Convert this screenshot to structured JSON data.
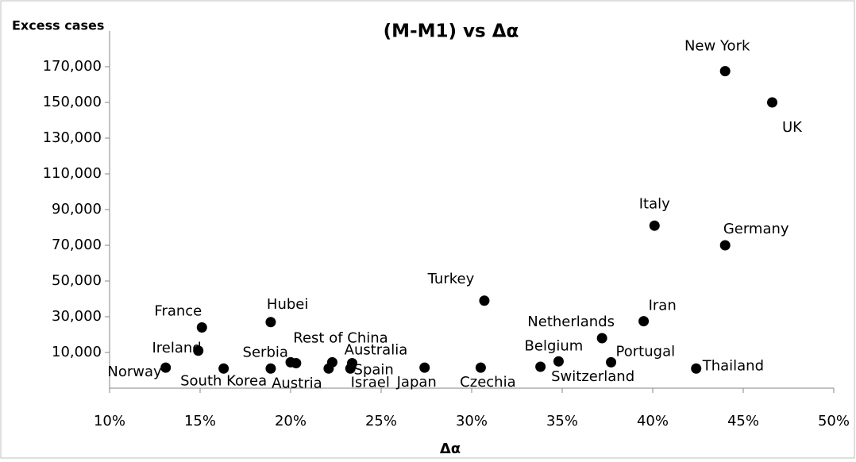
{
  "chart_data": {
    "type": "scatter",
    "title": "(M-M1) vs Δα",
    "y_label": "Excess cases",
    "x_label": "Δα",
    "color": "#000000",
    "xlim": [
      10,
      50
    ],
    "xticks": [
      {
        "value": 10,
        "label": "10%"
      },
      {
        "value": 15,
        "label": "15%"
      },
      {
        "value": 20,
        "label": "20%"
      },
      {
        "value": 25,
        "label": "25%"
      },
      {
        "value": 30,
        "label": "30%"
      },
      {
        "value": 35,
        "label": "35%"
      },
      {
        "value": 40,
        "label": "40%"
      },
      {
        "value": 45,
        "label": "45%"
      },
      {
        "value": 50,
        "label": "50%"
      }
    ],
    "ylim": [
      -10000,
      190000
    ],
    "yticks": [
      {
        "value": 10000,
        "label": "10,000"
      },
      {
        "value": 30000,
        "label": "30,000"
      },
      {
        "value": 50000,
        "label": "50,000"
      },
      {
        "value": 70000,
        "label": "70,000"
      },
      {
        "value": 90000,
        "label": "90,000"
      },
      {
        "value": 110000,
        "label": "110,000"
      },
      {
        "value": 130000,
        "label": "130,000"
      },
      {
        "value": 150000,
        "label": "150,000"
      },
      {
        "value": 170000,
        "label": "170,000"
      }
    ],
    "labels": [
      "Norway",
      "Ireland",
      "France",
      "South Korea",
      "Hubei",
      "Serbia",
      "Rest of China",
      null,
      "Australia",
      "Austria",
      "Spain",
      "Israel",
      "Japan",
      "Czechia",
      "Turkey",
      "Switzerland",
      "Belgium",
      "Netherlands",
      "Portugal",
      "Iran",
      "Italy",
      "Germany",
      "New York",
      "UK",
      "Thailand"
    ],
    "x": [
      13.1,
      14.9,
      15.1,
      16.3,
      18.9,
      18.9,
      20.0,
      20.3,
      22.3,
      22.1,
      23.4,
      23.3,
      27.4,
      30.5,
      30.7,
      33.8,
      34.8,
      37.2,
      37.7,
      39.5,
      40.1,
      44.0,
      44.0,
      46.6,
      42.4
    ],
    "values": [
      1500,
      11000,
      24000,
      1000,
      27000,
      1000,
      4500,
      4000,
      4500,
      1000,
      4000,
      1000,
      1500,
      1500,
      39000,
      2000,
      5000,
      18000,
      4500,
      27500,
      81000,
      70000,
      167500,
      150000,
      1000
    ]
  }
}
